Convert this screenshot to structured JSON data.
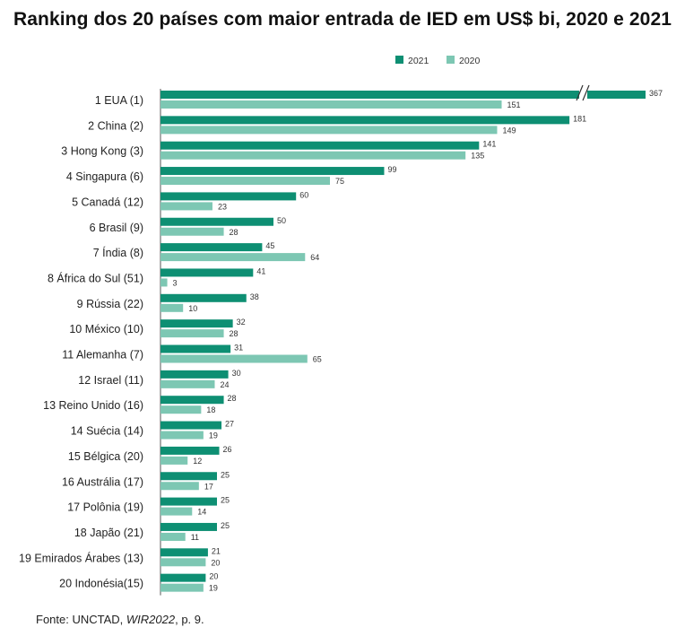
{
  "title": "Ranking dos 20 países com maior entrada de IED em US$ bi, 2020 e 2021",
  "source": {
    "prefix": "Fonte: UNCTAD, ",
    "italic": "WIR2022",
    "suffix": ", p. 9."
  },
  "colors": {
    "2021": "#0e8f73",
    "2020": "#7dc7b3",
    "axis": "#555555"
  },
  "chart_data": {
    "type": "bar",
    "orientation": "horizontal",
    "categories": [
      "1 EUA (1)",
      "2 China (2)",
      "3 Hong Kong (3)",
      "4 Singapura (6)",
      "5 Canadá (12)",
      "6 Brasil (9)",
      "7 Índia (8)",
      "8 África do Sul (51)",
      "9 Rússia (22)",
      "10 México (10)",
      "11  Alemanha (7)",
      "12 Israel (11)",
      "13 Reino Unido (16)",
      "14 Suécia (14)",
      "15 Bélgica (20)",
      "16 Austrália (17)",
      "17 Polônia (19)",
      "18 Japão (21)",
      "19 Emirados Árabes (13)",
      "20 Indonésia(15)"
    ],
    "series": [
      {
        "name": "2021",
        "values": [
          367,
          181,
          141,
          99,
          60,
          50,
          45,
          41,
          38,
          32,
          31,
          30,
          28,
          27,
          26,
          25,
          25,
          25,
          21,
          20
        ]
      },
      {
        "name": "2020",
        "values": [
          151,
          149,
          135,
          75,
          23,
          28,
          64,
          3,
          10,
          28,
          65,
          24,
          18,
          19,
          12,
          17,
          14,
          11,
          20,
          19
        ]
      }
    ],
    "axis_break": {
      "category": "1 EUA (1)",
      "series": "2021"
    },
    "legend_position": "top-right",
    "grid": false
  }
}
